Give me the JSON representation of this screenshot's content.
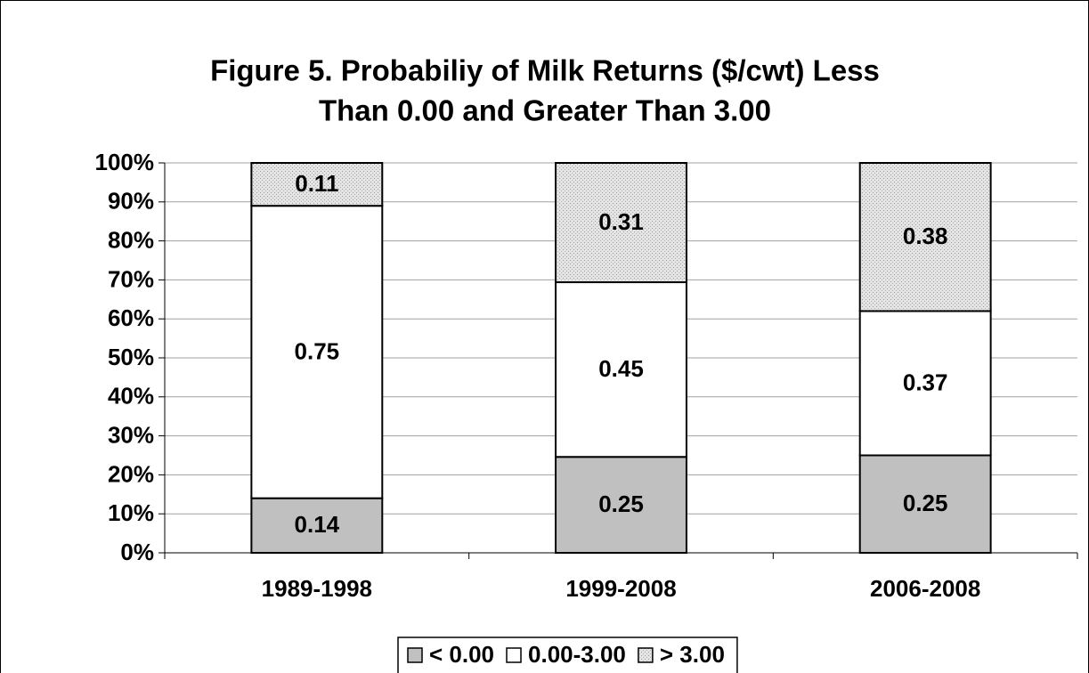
{
  "chart_data": {
    "type": "stacked_bar",
    "title": [
      "Figure 5. Probabiliy of Milk Returns ($/cwt) Less",
      "Than 0.00 and Greater Than 3.00"
    ],
    "categories": [
      "1989-1998",
      "1999-2008",
      "2006-2008"
    ],
    "series": [
      {
        "name": "< 0.00",
        "color": "#c0c0c0",
        "values": [
          14,
          24.6,
          25
        ],
        "value_labels": [
          "0.14",
          "0.25",
          "0.25"
        ]
      },
      {
        "name": "0.00-3.00",
        "color": "#ffffff",
        "values": [
          75,
          44.8,
          37
        ],
        "value_labels": [
          "0.75",
          "0.45",
          "0.37"
        ]
      },
      {
        "name": "> 3.00",
        "color": "#e4e4e4",
        "values": [
          11,
          30.6,
          38
        ],
        "value_labels": [
          "0.11",
          "0.31",
          "0.38"
        ]
      }
    ],
    "ylim": [
      0,
      100
    ],
    "yticks": [
      {
        "value": 0,
        "label": "0%"
      },
      {
        "value": 10,
        "label": "10%"
      },
      {
        "value": 20,
        "label": "20%"
      },
      {
        "value": 30,
        "label": "30%"
      },
      {
        "value": 40,
        "label": "40%"
      },
      {
        "value": 50,
        "label": "50%"
      },
      {
        "value": 60,
        "label": "60%"
      },
      {
        "value": 70,
        "label": "70%"
      },
      {
        "value": 80,
        "label": "80%"
      },
      {
        "value": 90,
        "label": "90%"
      },
      {
        "value": 100,
        "label": "100%"
      }
    ],
    "grid": true,
    "legend": "bottom"
  }
}
